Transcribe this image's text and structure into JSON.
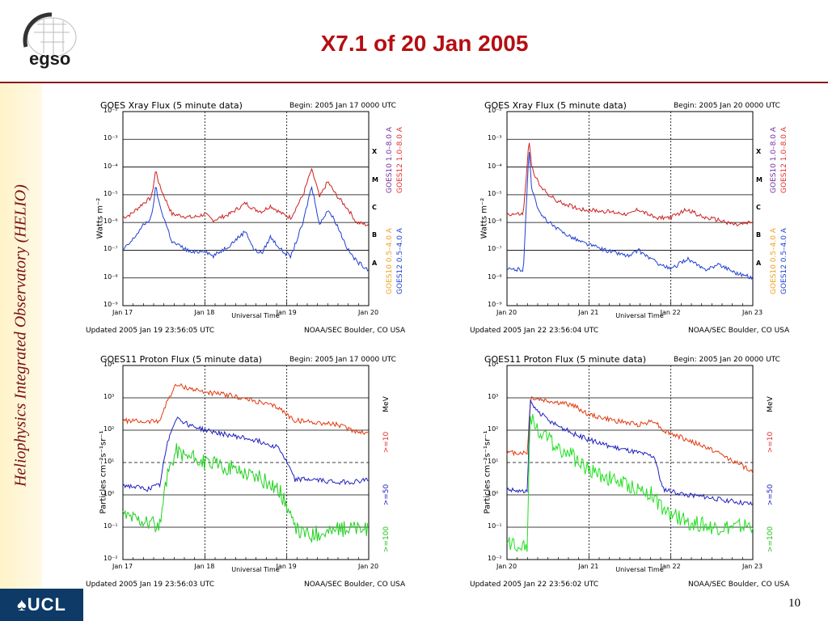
{
  "slide": {
    "title": "X7.1 of 20 Jan 2005",
    "sidebar_text": "Heliophysics Integrated Observatory (HELIO)",
    "logo_text": "egso",
    "footer_logo_text": "♠UCL",
    "page_number": "10"
  },
  "chart_data": [
    {
      "type": "line",
      "title": "GOES Xray Flux (5 minute data)",
      "begin": "Begin:  2005 Jan 17 0000 UTC",
      "xlabel": "Universal Time",
      "ylabel": "Watts m⁻²",
      "xticks": [
        "Jan 17",
        "Jan 18",
        "Jan 19",
        "Jan 20"
      ],
      "yscale": "log",
      "ylim": [
        1e-09,
        0.01
      ],
      "yticks": [
        "10⁻²",
        "10⁻³",
        "10⁻⁴",
        "10⁻⁵",
        "10⁻⁶",
        "10⁻⁷",
        "10⁻⁸",
        "10⁻⁹"
      ],
      "class_labels": [
        "X",
        "M",
        "C",
        "B",
        "A"
      ],
      "right_labels": [
        {
          "text": "GOES10 1.0–8.0 A",
          "color": "#7030a0"
        },
        {
          "text": "GOES12 1.0–8.0 A",
          "color": "#e03030"
        },
        {
          "text": "GOES10 0.5–4.0 A",
          "color": "#f0a020"
        },
        {
          "text": "GOES12 0.5–4.0 A",
          "color": "#2040d0"
        }
      ],
      "updated": "Updated 2005 Jan 19 23:56:05 UTC",
      "source": "NOAA/SEC Boulder, CO USA",
      "series": [
        {
          "color": "#cc2020",
          "x": [
            0,
            0.1,
            0.25,
            0.35,
            0.4,
            0.45,
            0.6,
            0.85,
            1,
            1.1,
            1.3,
            1.5,
            1.6,
            1.7,
            1.8,
            1.95,
            2.05,
            2.2,
            2.3,
            2.35,
            2.4,
            2.5,
            2.6,
            2.75,
            2.85,
            3
          ],
          "y": [
            1.5e-06,
            2e-06,
            5e-06,
            8e-06,
            8e-05,
            2e-05,
            2e-06,
            1.5e-06,
            2e-06,
            1.2e-06,
            2e-06,
            5e-06,
            3e-06,
            2.5e-06,
            4e-06,
            2e-06,
            1.5e-06,
            1e-05,
            8e-05,
            3e-05,
            8e-06,
            3e-05,
            1e-05,
            3e-06,
            1e-06,
            8e-07
          ]
        },
        {
          "color": "#2040d0",
          "x": [
            0,
            0.1,
            0.25,
            0.35,
            0.4,
            0.45,
            0.6,
            0.85,
            1,
            1.1,
            1.3,
            1.5,
            1.6,
            1.7,
            1.8,
            1.95,
            2.05,
            2.2,
            2.3,
            2.35,
            2.4,
            2.5,
            2.6,
            2.75,
            2.85,
            3
          ],
          "y": [
            1e-07,
            2e-07,
            8e-07,
            1.5e-06,
            2e-05,
            4e-06,
            2e-07,
            8e-08,
            1e-07,
            6e-08,
            1.5e-07,
            5e-07,
            1e-07,
            8e-08,
            3e-07,
            9e-08,
            6e-08,
            1e-06,
            2e-05,
            5e-06,
            8e-07,
            3e-06,
            1e-06,
            1e-07,
            4e-08,
            2e-08
          ]
        }
      ]
    },
    {
      "type": "line",
      "title": "GOES Xray Flux (5 minute data)",
      "begin": "Begin:  2005 Jan 20 0000 UTC",
      "xlabel": "Universal Time",
      "ylabel": "Watts m⁻²",
      "xticks": [
        "Jan 20",
        "Jan 21",
        "Jan 22",
        "Jan 23"
      ],
      "yscale": "log",
      "ylim": [
        1e-09,
        0.01
      ],
      "yticks": [
        "10⁻²",
        "10⁻³",
        "10⁻⁴",
        "10⁻⁵",
        "10⁻⁶",
        "10⁻⁷",
        "10⁻⁸",
        "10⁻⁹"
      ],
      "class_labels": [
        "X",
        "M",
        "C",
        "B",
        "A"
      ],
      "right_labels": [
        {
          "text": "GOES10 1.0–8.0 A",
          "color": "#7030a0"
        },
        {
          "text": "GOES12 1.0–8.0 A",
          "color": "#e03030"
        },
        {
          "text": "GOES10 0.5–4.0 A",
          "color": "#f0a020"
        },
        {
          "text": "GOES12 0.5–4.0 A",
          "color": "#2040d0"
        }
      ],
      "updated": "Updated 2005 Jan 22 23:56:04 UTC",
      "source": "NOAA/SEC Boulder, CO USA",
      "series": [
        {
          "color": "#cc2020",
          "x": [
            0,
            0.2,
            0.27,
            0.3,
            0.4,
            0.6,
            0.9,
            1.2,
            1.5,
            1.6,
            1.8,
            2.0,
            2.2,
            2.4,
            2.6,
            2.8,
            3
          ],
          "y": [
            2e-06,
            2e-06,
            0.001,
            0.0001,
            2e-05,
            6e-06,
            3e-06,
            2.5e-06,
            2e-06,
            3e-06,
            1.5e-06,
            1.5e-06,
            3e-06,
            1.5e-06,
            1.2e-06,
            8e-07,
            1e-06
          ]
        },
        {
          "color": "#2040d0",
          "x": [
            0,
            0.2,
            0.27,
            0.3,
            0.4,
            0.6,
            0.9,
            1.2,
            1.5,
            1.6,
            1.8,
            2.0,
            2.2,
            2.4,
            2.6,
            2.8,
            3
          ],
          "y": [
            2e-08,
            2e-08,
            0.0005,
            2e-05,
            2e-06,
            6e-07,
            2e-07,
            1e-07,
            6e-08,
            1e-07,
            4e-08,
            2e-08,
            5e-08,
            2e-08,
            3e-08,
            1.5e-08,
            1e-08
          ]
        }
      ]
    },
    {
      "type": "line",
      "title": "GOES11 Proton Flux (5 minute data)",
      "begin": "Begin: 2005 Jan 17 0000 UTC",
      "xlabel": "Universal Time",
      "ylabel": "Particles cm⁻²s⁻¹sr⁻¹",
      "xticks": [
        "Jan 17",
        "Jan 18",
        "Jan 19",
        "Jan 20"
      ],
      "yscale": "log",
      "ylim": [
        0.01,
        10000
      ],
      "yticks": [
        "10⁴",
        "10³",
        "10²",
        "10¹",
        "10⁰",
        "10⁻¹",
        "10⁻²"
      ],
      "right_labels": [
        {
          "text": "MeV",
          "color": "#000000"
        },
        {
          "text": ">=10",
          "color": "#e03030"
        },
        {
          "text": ">=50",
          "color": "#2020c0"
        },
        {
          "text": ">=100",
          "color": "#20c020"
        }
      ],
      "updated": "Updated 2005 Jan 19 23:56:03 UTC",
      "source": "NOAA/SEC Boulder, CO USA",
      "series": [
        {
          "color": "#e03a10",
          "x": [
            0,
            0.3,
            0.45,
            0.55,
            0.65,
            0.8,
            1.0,
            1.3,
            1.6,
            1.9,
            2.0,
            2.1,
            2.3,
            2.6,
            2.8,
            3
          ],
          "y": [
            200,
            180,
            200,
            900,
            2500,
            2000,
            1500,
            1200,
            800,
            500,
            300,
            200,
            180,
            150,
            100,
            80
          ]
        },
        {
          "color": "#2020c0",
          "x": [
            0,
            0.3,
            0.45,
            0.55,
            0.65,
            0.8,
            1.0,
            1.3,
            1.6,
            1.9,
            2.0,
            2.1,
            2.3,
            2.6,
            2.8,
            3
          ],
          "y": [
            2,
            1.5,
            2,
            50,
            250,
            150,
            100,
            70,
            50,
            30,
            10,
            3,
            3,
            2.5,
            2.5,
            3
          ]
        },
        {
          "color": "#20d020",
          "x": [
            0,
            0.3,
            0.45,
            0.55,
            0.65,
            0.8,
            1.0,
            1.3,
            1.6,
            1.9,
            2.0,
            2.1,
            2.3,
            2.6,
            2.8,
            3
          ],
          "y": [
            0.25,
            0.15,
            0.1,
            5,
            25,
            15,
            10,
            7,
            4,
            1.5,
            0.5,
            0.08,
            0.06,
            0.08,
            0.1,
            0.08
          ]
        }
      ]
    },
    {
      "type": "line",
      "title": "GOES11 Proton Flux (5 minute data)",
      "begin": "Begin: 2005 Jan 20 0000 UTC",
      "xlabel": "Universal Time",
      "ylabel": "Particles cm⁻²s⁻¹sr⁻¹",
      "xticks": [
        "Jan 20",
        "Jan 21",
        "Jan 22",
        "Jan 23"
      ],
      "yscale": "log",
      "ylim": [
        0.01,
        10000
      ],
      "yticks": [
        "10⁴",
        "10³",
        "10²",
        "10¹",
        "10⁰",
        "10⁻¹",
        "10⁻²"
      ],
      "right_labels": [
        {
          "text": "MeV",
          "color": "#000000"
        },
        {
          "text": ">=10",
          "color": "#e03030"
        },
        {
          "text": ">=50",
          "color": "#2020c0"
        },
        {
          "text": ">=100",
          "color": "#20c020"
        }
      ],
      "updated": "Updated 2005 Jan 22 23:56:02 UTC",
      "source": "NOAA/SEC Boulder, CO USA",
      "series": [
        {
          "color": "#e03a10",
          "x": [
            0,
            0.25,
            0.28,
            0.3,
            0.5,
            0.8,
            1.0,
            1.3,
            1.6,
            1.8,
            1.9,
            2.2,
            2.5,
            2.8,
            3
          ],
          "y": [
            20,
            20,
            600,
            1000,
            800,
            600,
            300,
            200,
            150,
            200,
            100,
            50,
            25,
            10,
            5
          ]
        },
        {
          "color": "#2020c0",
          "x": [
            0,
            0.25,
            0.28,
            0.3,
            0.5,
            0.8,
            1.0,
            1.3,
            1.6,
            1.8,
            1.9,
            2.2,
            2.5,
            2.8,
            3
          ],
          "y": [
            1.5,
            1.2,
            800,
            600,
            200,
            80,
            50,
            30,
            20,
            15,
            1.5,
            1,
            0.8,
            0.6,
            0.5
          ]
        },
        {
          "color": "#20e020",
          "x": [
            0,
            0.25,
            0.28,
            0.3,
            0.5,
            0.8,
            1.0,
            1.3,
            1.6,
            1.8,
            1.9,
            2.2,
            2.5,
            2.8,
            3
          ],
          "y": [
            0.03,
            0.03,
            300,
            200,
            50,
            15,
            6,
            3,
            1.5,
            1,
            0.3,
            0.15,
            0.1,
            0.1,
            0.12
          ]
        }
      ]
    }
  ]
}
